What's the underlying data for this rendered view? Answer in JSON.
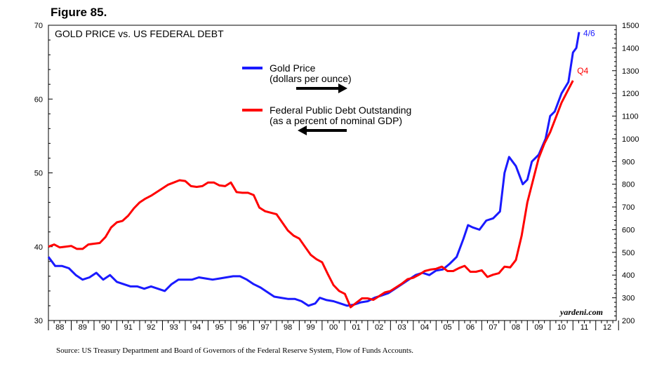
{
  "figure": {
    "title": "Figure 85.",
    "source": "Source: US Treasury Department and Board of Governors of the Federal Reserve System, Flow of Funds Accounts."
  },
  "chart_data": {
    "type": "line",
    "title": "GOLD PRICE vs. US FEDERAL DEBT",
    "watermark": "yardeni.com",
    "x_range": [
      1988.0,
      2012.9
    ],
    "x_tick_labels": [
      "88",
      "89",
      "90",
      "91",
      "92",
      "93",
      "94",
      "95",
      "96",
      "97",
      "98",
      "99",
      "00",
      "01",
      "02",
      "03",
      "04",
      "05",
      "06",
      "07",
      "08",
      "09",
      "10",
      "11",
      "12"
    ],
    "left_axis": {
      "range": [
        30,
        70
      ],
      "ticks": [
        30,
        40,
        50,
        60,
        70
      ]
    },
    "right_axis": {
      "range": [
        200,
        1500
      ],
      "ticks": [
        200,
        300,
        400,
        500,
        600,
        700,
        800,
        900,
        1000,
        1100,
        1200,
        1300,
        1400,
        1500
      ]
    },
    "legend": [
      {
        "name": "Gold Price",
        "sub": "(dollars per ounce)",
        "color": "#1a1aff",
        "arrow": "right"
      },
      {
        "name": "Federal Public Debt Outstanding",
        "sub": "(as a percent of nominal GDP)",
        "color": "#ff0000",
        "arrow": "left"
      }
    ],
    "series": [
      {
        "name": "Gold Price",
        "sub": "(dollars per ounce)",
        "color": "#1a1aff",
        "axis": "right",
        "end_label": "4/6",
        "x": [
          1988.0,
          1988.3,
          1988.6,
          1988.9,
          1989.2,
          1989.5,
          1989.8,
          1990.1,
          1990.4,
          1990.7,
          1991.0,
          1991.3,
          1991.6,
          1991.9,
          1992.2,
          1992.5,
          1992.8,
          1993.1,
          1993.4,
          1993.7,
          1994.0,
          1994.3,
          1994.6,
          1994.9,
          1995.2,
          1995.5,
          1995.8,
          1996.1,
          1996.4,
          1996.7,
          1997.0,
          1997.3,
          1997.6,
          1997.9,
          1998.2,
          1998.5,
          1998.8,
          1999.1,
          1999.4,
          1999.7,
          1999.9,
          2000.2,
          2000.5,
          2000.8,
          2001.1,
          2001.4,
          2001.7,
          2002.0,
          2002.3,
          2002.6,
          2002.9,
          2003.2,
          2003.5,
          2003.8,
          2004.1,
          2004.4,
          2004.7,
          2005.0,
          2005.3,
          2005.6,
          2005.9,
          2006.2,
          2006.4,
          2006.6,
          2006.9,
          2007.2,
          2007.5,
          2007.8,
          2008.0,
          2008.2,
          2008.5,
          2008.8,
          2009.0,
          2009.2,
          2009.5,
          2009.8,
          2010.0,
          2010.2,
          2010.5,
          2010.8,
          2011.0,
          2011.15,
          2011.27
        ],
        "values": [
          480,
          440,
          440,
          430,
          400,
          380,
          390,
          410,
          380,
          400,
          370,
          360,
          350,
          350,
          340,
          350,
          340,
          330,
          360,
          380,
          380,
          380,
          390,
          385,
          380,
          385,
          390,
          395,
          395,
          380,
          360,
          345,
          325,
          305,
          300,
          295,
          295,
          285,
          265,
          275,
          300,
          290,
          285,
          275,
          265,
          270,
          280,
          285,
          300,
          310,
          320,
          340,
          360,
          380,
          400,
          410,
          400,
          420,
          425,
          450,
          480,
          560,
          620,
          610,
          600,
          640,
          650,
          680,
          850,
          920,
          880,
          800,
          820,
          900,
          930,
          1000,
          1100,
          1120,
          1200,
          1250,
          1380,
          1400,
          1470
        ]
      },
      {
        "name": "Federal Public Debt Outstanding",
        "sub": "(as a percent of nominal GDP)",
        "color": "#ff0000",
        "axis": "left",
        "end_label": "Q4",
        "x": [
          1988.0,
          1988.25,
          1988.5,
          1988.75,
          1989.0,
          1989.25,
          1989.5,
          1989.75,
          1990.0,
          1990.25,
          1990.5,
          1990.75,
          1991.0,
          1991.25,
          1991.5,
          1991.75,
          1992.0,
          1992.25,
          1992.5,
          1992.75,
          1993.0,
          1993.25,
          1993.5,
          1993.75,
          1994.0,
          1994.25,
          1994.5,
          1994.75,
          1995.0,
          1995.25,
          1995.5,
          1995.75,
          1996.0,
          1996.25,
          1996.5,
          1996.75,
          1997.0,
          1997.25,
          1997.5,
          1997.75,
          1998.0,
          1998.25,
          1998.5,
          1998.75,
          1999.0,
          1999.25,
          1999.5,
          1999.75,
          2000.0,
          2000.25,
          2000.5,
          2000.75,
          2001.0,
          2001.25,
          2001.5,
          2001.75,
          2002.0,
          2002.25,
          2002.5,
          2002.75,
          2003.0,
          2003.25,
          2003.5,
          2003.75,
          2004.0,
          2004.25,
          2004.5,
          2004.75,
          2005.0,
          2005.25,
          2005.5,
          2005.75,
          2006.0,
          2006.25,
          2006.5,
          2006.75,
          2007.0,
          2007.25,
          2007.5,
          2007.75,
          2008.0,
          2008.25,
          2008.5,
          2008.75,
          2009.0,
          2009.25,
          2009.5,
          2009.75,
          2010.0,
          2010.25,
          2010.5,
          2010.75,
          2011.0
        ],
        "values": [
          40.0,
          40.3,
          39.9,
          40.0,
          40.1,
          39.7,
          39.7,
          40.3,
          40.4,
          40.5,
          41.3,
          42.6,
          43.3,
          43.5,
          44.2,
          45.2,
          46.0,
          46.5,
          46.9,
          47.4,
          47.9,
          48.4,
          48.7,
          49.0,
          48.9,
          48.2,
          48.1,
          48.2,
          48.7,
          48.7,
          48.3,
          48.2,
          48.7,
          47.4,
          47.3,
          47.3,
          47.0,
          45.3,
          44.8,
          44.6,
          44.4,
          43.3,
          42.2,
          41.5,
          41.1,
          40.0,
          38.9,
          38.3,
          37.9,
          36.3,
          34.8,
          34.0,
          33.6,
          31.8,
          32.4,
          33.0,
          33.0,
          32.8,
          33.3,
          33.8,
          34.0,
          34.5,
          35.0,
          35.6,
          35.8,
          36.2,
          36.7,
          36.9,
          37.0,
          37.3,
          36.7,
          36.7,
          37.1,
          37.4,
          36.6,
          36.6,
          36.8,
          35.9,
          36.2,
          36.4,
          37.3,
          37.2,
          38.2,
          41.5,
          46.0,
          49.0,
          52.0,
          54.0,
          55.5,
          57.5,
          59.5,
          61.0,
          62.5
        ]
      }
    ]
  }
}
